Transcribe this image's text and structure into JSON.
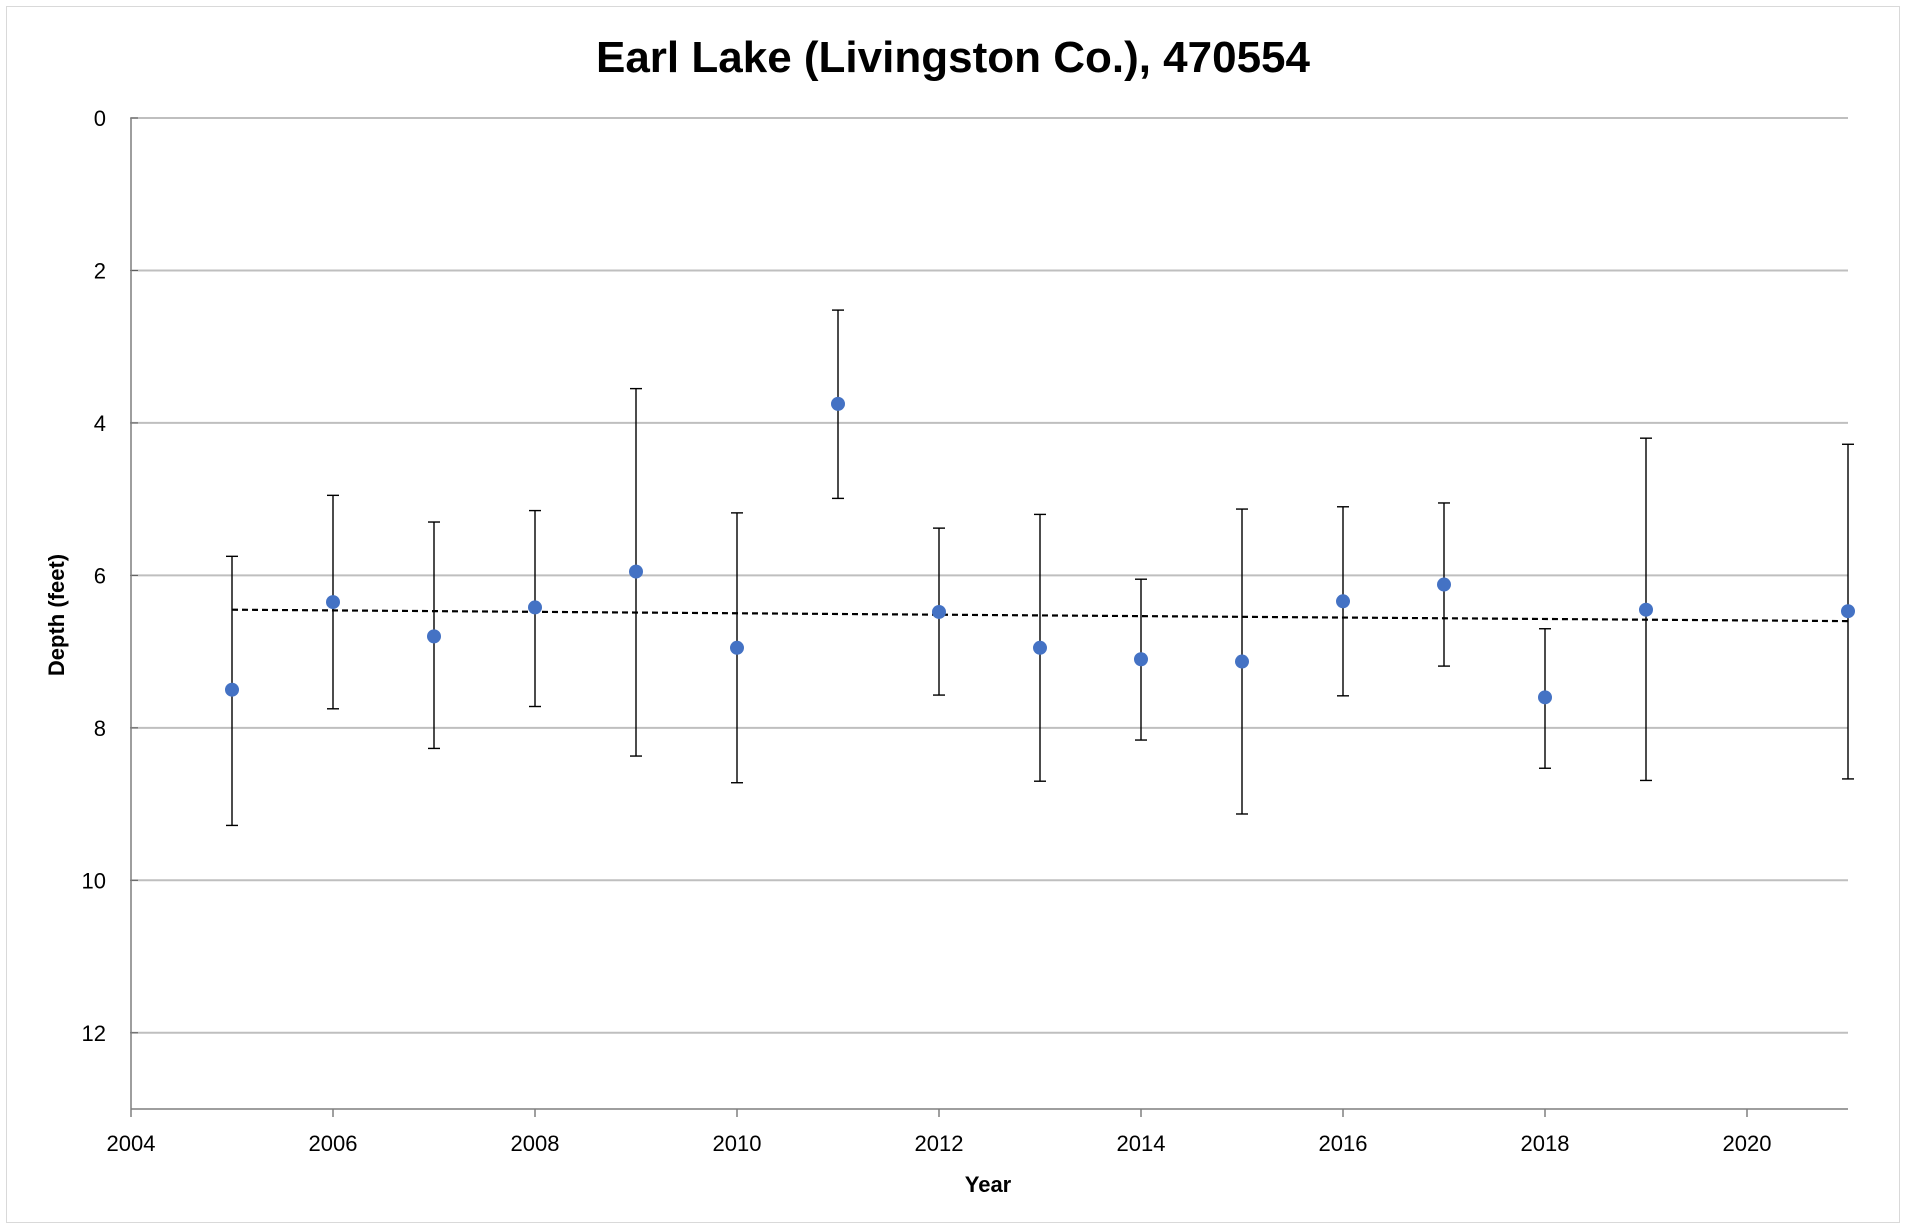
{
  "chart_data": {
    "type": "scatter",
    "title": "Earl Lake (Livingston Co.), 470554",
    "xlabel": "Year",
    "ylabel": "Depth (feet)",
    "xlim": [
      2004,
      2021
    ],
    "ylim": [
      0,
      13
    ],
    "y_inverted": true,
    "x_ticks": [
      2004,
      2006,
      2008,
      2010,
      2012,
      2014,
      2016,
      2018,
      2020
    ],
    "y_ticks": [
      0,
      2,
      4,
      6,
      8,
      10,
      12
    ],
    "grid": "horizontal",
    "legend": "none",
    "series": [
      {
        "color": "#4472c4",
        "points": [
          {
            "x": 2005,
            "y": 7.5,
            "err_low": 5.75,
            "err_high": 9.28
          },
          {
            "x": 2006,
            "y": 6.35,
            "err_low": 4.95,
            "err_high": 7.75
          },
          {
            "x": 2007,
            "y": 6.8,
            "err_low": 5.3,
            "err_high": 8.27
          },
          {
            "x": 2008,
            "y": 6.42,
            "err_low": 5.15,
            "err_high": 7.72
          },
          {
            "x": 2009,
            "y": 5.95,
            "err_low": 3.55,
            "err_high": 8.37
          },
          {
            "x": 2010,
            "y": 6.95,
            "err_low": 5.18,
            "err_high": 8.72
          },
          {
            "x": 2011,
            "y": 3.75,
            "err_low": 2.52,
            "err_high": 4.99
          },
          {
            "x": 2012,
            "y": 6.48,
            "err_low": 5.38,
            "err_high": 7.57
          },
          {
            "x": 2013,
            "y": 6.95,
            "err_low": 5.2,
            "err_high": 8.7
          },
          {
            "x": 2014,
            "y": 7.1,
            "err_low": 6.05,
            "err_high": 8.16
          },
          {
            "x": 2015,
            "y": 7.13,
            "err_low": 5.13,
            "err_high": 9.13
          },
          {
            "x": 2016,
            "y": 6.34,
            "err_low": 5.1,
            "err_high": 7.58
          },
          {
            "x": 2017,
            "y": 6.12,
            "err_low": 5.05,
            "err_high": 7.19
          },
          {
            "x": 2018,
            "y": 7.6,
            "err_low": 6.7,
            "err_high": 8.53
          },
          {
            "x": 2019,
            "y": 6.45,
            "err_low": 4.2,
            "err_high": 8.69
          },
          {
            "x": 2021,
            "y": 6.47,
            "err_low": 4.28,
            "err_high": 8.67
          }
        ]
      }
    ],
    "trendline": {
      "style": "dashed",
      "color": "#000000",
      "x": [
        2005,
        2021
      ],
      "y": [
        6.45,
        6.6
      ]
    }
  }
}
